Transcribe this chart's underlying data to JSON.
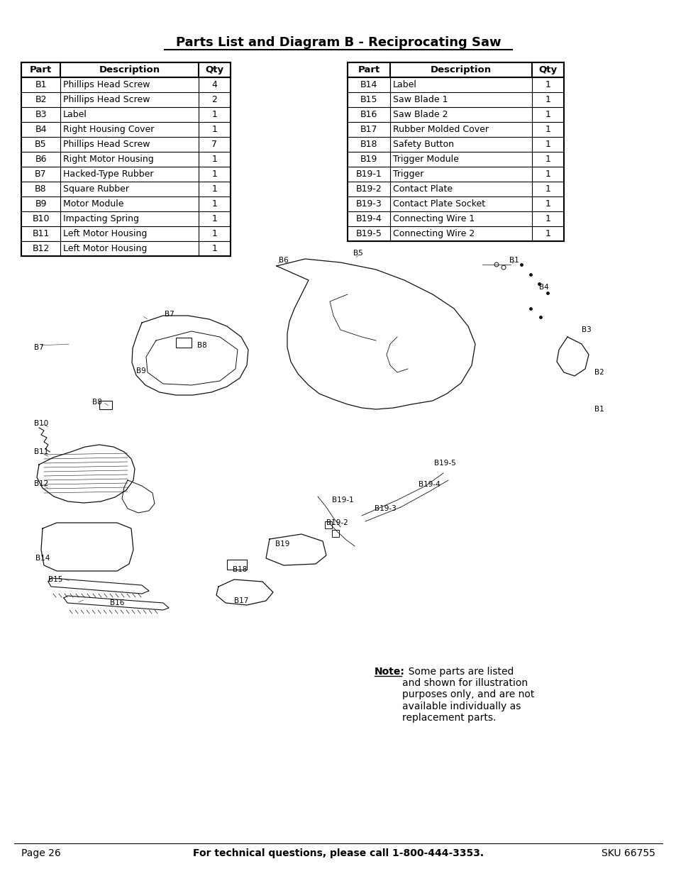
{
  "title": "Parts List and Diagram B - Reciprocating Saw",
  "bg_color": "#ffffff",
  "text_color": "#000000",
  "table_left": {
    "headers": [
      "Part",
      "Description",
      "Qty"
    ],
    "rows": [
      [
        "B1",
        "Phillips Head Screw",
        "4"
      ],
      [
        "B2",
        "Phillips Head Screw",
        "2"
      ],
      [
        "B3",
        "Label",
        "1"
      ],
      [
        "B4",
        "Right Housing Cover",
        "1"
      ],
      [
        "B5",
        "Phillips Head Screw",
        "7"
      ],
      [
        "B6",
        "Right Motor Housing",
        "1"
      ],
      [
        "B7",
        "Hacked-Type Rubber",
        "1"
      ],
      [
        "B8",
        "Square Rubber",
        "1"
      ],
      [
        "B9",
        "Motor Module",
        "1"
      ],
      [
        "B10",
        "Impacting Spring",
        "1"
      ],
      [
        "B11",
        "Left Motor Housing",
        "1"
      ],
      [
        "B12",
        "Left Motor Housing",
        "1"
      ]
    ]
  },
  "table_right": {
    "headers": [
      "Part",
      "Description",
      "Qty"
    ],
    "rows": [
      [
        "B14",
        "Label",
        "1"
      ],
      [
        "B15",
        "Saw Blade 1",
        "1"
      ],
      [
        "B16",
        "Saw Blade 2",
        "1"
      ],
      [
        "B17",
        "Rubber Molded Cover",
        "1"
      ],
      [
        "B18",
        "Safety Button",
        "1"
      ],
      [
        "B19",
        "Trigger Module",
        "1"
      ],
      [
        "B19-1",
        "Trigger",
        "1"
      ],
      [
        "B19-2",
        "Contact Plate",
        "1"
      ],
      [
        "B19-3",
        "Contact Plate Socket",
        "1"
      ],
      [
        "B19-4",
        "Connecting Wire 1",
        "1"
      ],
      [
        "B19-5",
        "Connecting Wire 2",
        "1"
      ]
    ]
  },
  "note_label": "Note:",
  "note_body": "  Some parts are listed\nand shown for illustration\npurposes only, and are not\navailable individually as\nreplacement parts.",
  "footer_left": "Page 26",
  "footer_center": "For technical questions, please call 1-800-444-3353.",
  "footer_right": "SKU 66755",
  "diagram_labels": [
    [
      "B6",
      393,
      868
    ],
    [
      "B5",
      498,
      878
    ],
    [
      "B1",
      718,
      868
    ],
    [
      "B4",
      760,
      830
    ],
    [
      "B3",
      820,
      770
    ],
    [
      "B2",
      838,
      710
    ],
    [
      "B1",
      838,
      658
    ],
    [
      "B7",
      48,
      745
    ],
    [
      "B8",
      130,
      668
    ],
    [
      "B8",
      278,
      748
    ],
    [
      "B9",
      192,
      712
    ],
    [
      "B10",
      48,
      638
    ],
    [
      "B11",
      48,
      598
    ],
    [
      "B12",
      48,
      553
    ],
    [
      "B7",
      232,
      792
    ],
    [
      "B14",
      50,
      448
    ],
    [
      "B15",
      68,
      418
    ],
    [
      "B16",
      155,
      385
    ],
    [
      "B17",
      330,
      388
    ],
    [
      "B18",
      328,
      432
    ],
    [
      "B19",
      388,
      468
    ],
    [
      "B19-1",
      468,
      530
    ],
    [
      "B19-2",
      460,
      498
    ],
    [
      "B19-3",
      528,
      518
    ],
    [
      "B19-4",
      590,
      552
    ],
    [
      "B19-5",
      612,
      582
    ]
  ]
}
